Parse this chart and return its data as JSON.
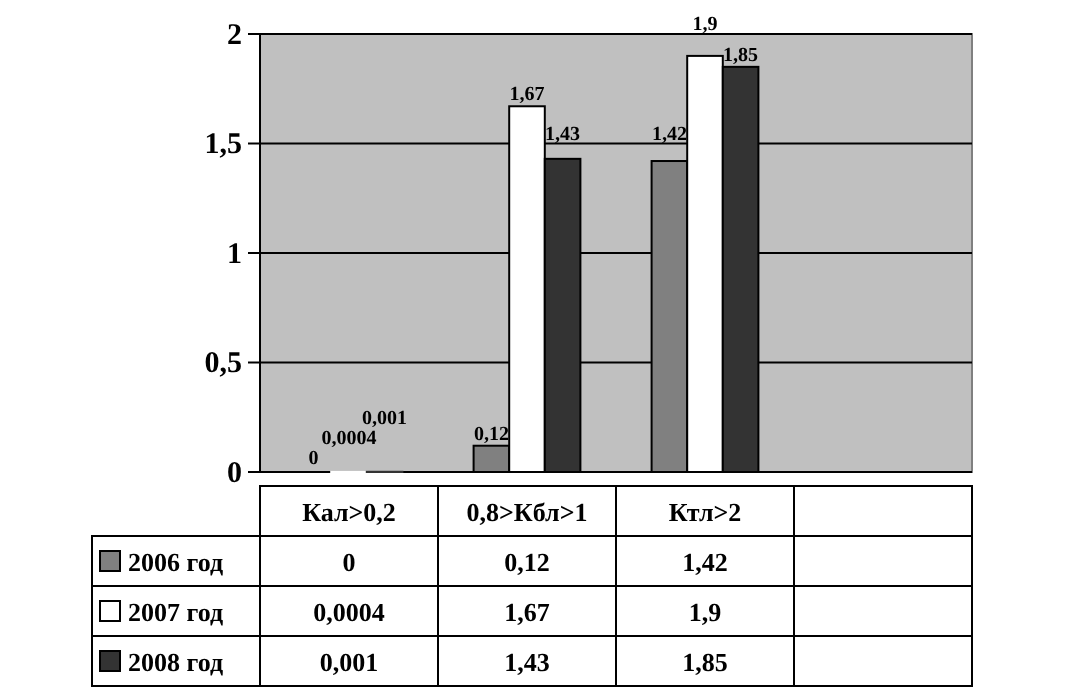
{
  "chart_data": {
    "type": "bar",
    "categories": [
      "Кал>0,2",
      "0,8>Кбл>1",
      "Ктл>2",
      null
    ],
    "series": [
      {
        "name": "2006 год",
        "color": "#808080",
        "values": [
          0,
          0.12,
          1.42,
          null
        ],
        "value_labels": [
          "0",
          "0,12",
          "1,42",
          null
        ]
      },
      {
        "name": "2007 год",
        "color": "#ffffff",
        "values": [
          0.0004,
          1.67,
          1.9,
          null
        ],
        "value_labels": [
          "0,0004",
          "1,67",
          "1,9",
          null
        ]
      },
      {
        "name": "2008 год",
        "color": "#333333",
        "values": [
          0.001,
          1.43,
          1.85,
          null
        ],
        "value_labels": [
          "0,001",
          "1,43",
          "1,85",
          null
        ]
      }
    ],
    "ylim": [
      0,
      2
    ],
    "yticks": [
      0,
      {
        "value": 0.5,
        "label": "0,5"
      },
      1,
      {
        "value": 1.5,
        "label": "1,5"
      },
      2
    ],
    "grid": "y",
    "legend": "bottom"
  }
}
